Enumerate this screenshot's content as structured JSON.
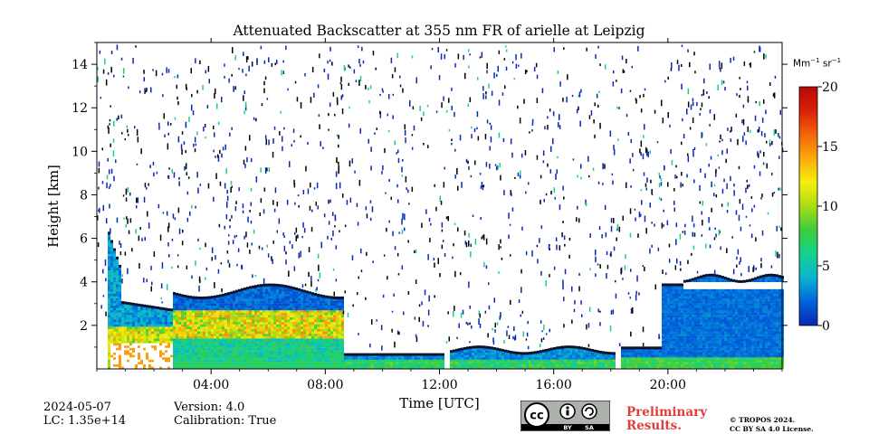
{
  "chart_data": {
    "type": "heatmap",
    "title": "Attenuated Backscatter at 355 nm FR of arielle at Leipzig",
    "xlabel": "Time [UTC]",
    "ylabel": "Height [km]",
    "x_range_hours": [
      0,
      24
    ],
    "ylim": [
      0,
      15
    ],
    "x_ticks": [
      4,
      8,
      12,
      16,
      20
    ],
    "x_tick_labels": [
      "04:00",
      "08:00",
      "12:00",
      "16:00",
      "20:00"
    ],
    "y_ticks": [
      2,
      4,
      6,
      8,
      10,
      12,
      14
    ],
    "y_tick_labels": [
      "2",
      "4",
      "6",
      "8",
      "10",
      "12",
      "14"
    ],
    "colorbar": {
      "unit_base": "Mm",
      "unit_exp1": "−1",
      "unit_mid": " sr",
      "unit_exp2": "−1",
      "range": [
        0,
        20
      ],
      "ticks": [
        0,
        5,
        10,
        15,
        20
      ],
      "tick_labels": [
        "0",
        "5",
        "10",
        "15",
        "20"
      ],
      "colormap": [
        "#0a28b4",
        "#0064dc",
        "#0ab4d2",
        "#14d28c",
        "#3ccd3c",
        "#aadc14",
        "#f5f00a",
        "#faaa0a",
        "#f5640a",
        "#dc1e0a",
        "#b40a0a"
      ]
    },
    "layers": [
      {
        "start": 0.3,
        "end": 2.6,
        "top": 2.6,
        "features": "intense aerosol, saturated >20 below 1.2 km"
      },
      {
        "start": 2.6,
        "end": 8.6,
        "top": 3.7,
        "features": "residual layer 1.5-2.8 km, values 8-15"
      },
      {
        "start": 8.6,
        "end": 12.1,
        "top": 0.6,
        "features": "shallow boundary layer"
      },
      {
        "start": 12.1,
        "end": 18.2,
        "top": 0.8,
        "features": "boundary layer, scattered cloud columns"
      },
      {
        "start": 18.3,
        "end": 24.0,
        "top": 4.3,
        "features": "lofted aerosol layer up to 4 km"
      }
    ],
    "data_gaps_hours": [
      [
        0.0,
        0.2
      ],
      [
        12.1,
        12.3
      ],
      [
        18.1,
        18.3
      ]
    ],
    "grid": false
  },
  "meta": {
    "date": "2024-05-07",
    "lc": "LC: 1.35e+14",
    "version": "Version: 4.0",
    "calibration": "Calibration: True"
  },
  "badge": {
    "cc": "cc",
    "by": "BY",
    "sa": "SA"
  },
  "preliminary": {
    "line1": "Preliminary",
    "line2": "Results."
  },
  "copyright": {
    "line1": "© TROPOS 2024.",
    "line2": "CC BY SA 4.0 License."
  }
}
